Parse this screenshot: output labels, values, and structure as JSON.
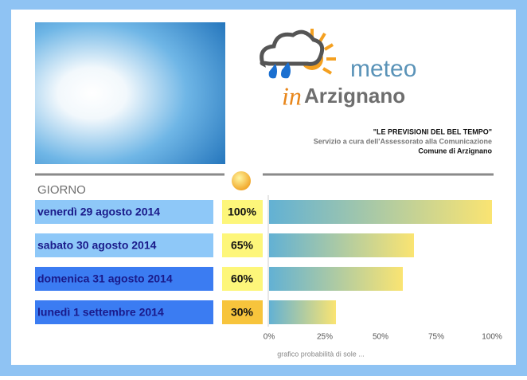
{
  "header": {
    "brand_1": "meteo",
    "brand_2": "in",
    "brand_3": "Arzignano",
    "line_1": "\"LE PREVISIONI DEL BEL TEMPO\"",
    "line_2": "Servizio a cura dell'Assessorato alla Comunicazione",
    "line_3": "Comune di Arzignano"
  },
  "chart_data": {
    "type": "bar",
    "orientation": "horizontal",
    "category_header": "GIORNO",
    "categories": [
      "venerdì 29 agosto 2014",
      "sabato 30 agosto 2014",
      "domenica 31 agosto 2014",
      "lunedì 1 settembre 2014"
    ],
    "values": [
      100,
      65,
      60,
      30
    ],
    "value_labels": [
      "100%",
      "65%",
      "60%",
      "30%"
    ],
    "category_colors": [
      "#8ec8f8",
      "#8ec8f8",
      "#3b7cf2",
      "#3b7cf2"
    ],
    "value_label_colors": [
      "#fdf67a",
      "#fdf67a",
      "#fdf67a",
      "#f7c43c"
    ],
    "bar_gradient": [
      "#62b1d4",
      "#fae472"
    ],
    "xlim": [
      0,
      100
    ],
    "xticks": [
      {
        "value": 0,
        "label": "0%"
      },
      {
        "value": 25,
        "label": "25%"
      },
      {
        "value": 50,
        "label": "50%"
      },
      {
        "value": 75,
        "label": "75%"
      },
      {
        "value": 100,
        "label": "100%"
      }
    ],
    "x_label": "grafico probabilità di sole ..."
  }
}
